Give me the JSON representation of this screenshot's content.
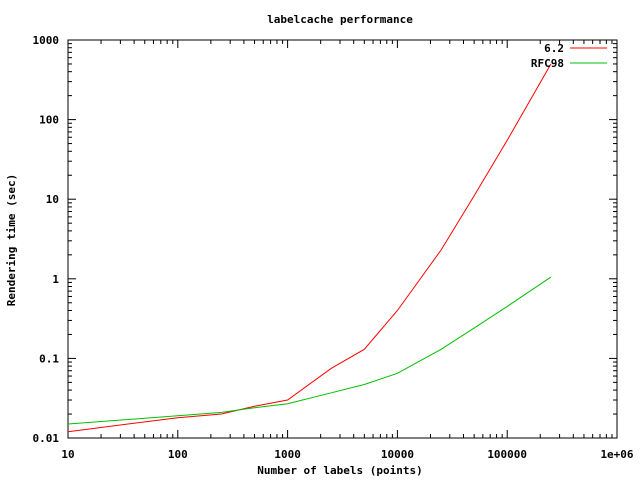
{
  "chart_data": {
    "type": "line",
    "title": "labelcache performance",
    "xlabel": "Number of labels (points)",
    "ylabel": "Rendering time (sec)",
    "xscale": "log",
    "yscale": "log",
    "xlim": [
      10,
      1000000
    ],
    "ylim": [
      0.01,
      1000
    ],
    "x_ticks": [
      10,
      100,
      1000,
      10000,
      100000,
      1000000
    ],
    "x_tick_labels": [
      "10",
      "100",
      "1000",
      "10000",
      "100000",
      "1e+06"
    ],
    "y_ticks": [
      0.01,
      0.1,
      1,
      10,
      100,
      1000
    ],
    "y_tick_labels": [
      "0.01",
      "0.1",
      "1",
      "10",
      "100",
      "1000"
    ],
    "legend_position": "top-right",
    "grid": false,
    "series": [
      {
        "name": "6.2",
        "color": "#ff0000",
        "x": [
          10,
          100,
          250,
          500,
          1000,
          2500,
          5000,
          10000,
          25000,
          50000,
          100000,
          250000
        ],
        "y": [
          0.012,
          0.018,
          0.02,
          0.025,
          0.03,
          0.075,
          0.13,
          0.4,
          2.3,
          11,
          55,
          500
        ]
      },
      {
        "name": "RFC98",
        "color": "#00c000",
        "x": [
          10,
          100,
          250,
          500,
          1000,
          2500,
          5000,
          10000,
          25000,
          50000,
          100000,
          250000
        ],
        "y": [
          0.015,
          0.019,
          0.021,
          0.024,
          0.027,
          0.037,
          0.047,
          0.065,
          0.13,
          0.24,
          0.45,
          1.05
        ]
      }
    ]
  }
}
